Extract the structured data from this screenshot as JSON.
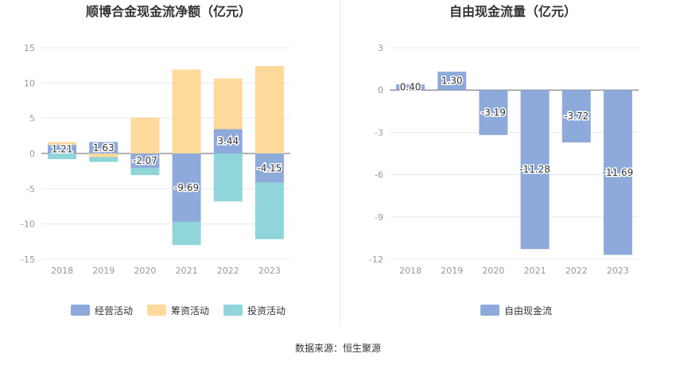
{
  "source_label": "数据来源：恒生聚源",
  "chart_data": [
    {
      "type": "bar",
      "stacked": true,
      "title": "顺博合金现金流净额（亿元）",
      "categories": [
        "2018",
        "2019",
        "2020",
        "2021",
        "2022",
        "2023"
      ],
      "ylim": [
        -15,
        15
      ],
      "yticks": [
        15,
        10,
        5,
        0,
        -5,
        -10,
        -15
      ],
      "grid": true,
      "legend_position": "bottom",
      "series": [
        {
          "name": "经营活动",
          "color": "#8eaadb",
          "values": [
            1.21,
            1.63,
            -2.07,
            -9.69,
            3.44,
            -4.15
          ],
          "labels": [
            "1.21",
            "1.63",
            "-2.07",
            "-9.69",
            "3.44",
            "-4.15"
          ]
        },
        {
          "name": "筹资活动",
          "color": "#fdd99b",
          "values": [
            0.4,
            -0.5,
            5.1,
            11.9,
            7.2,
            12.4
          ]
        },
        {
          "name": "投资活动",
          "color": "#8fd5d9",
          "values": [
            -0.8,
            -0.7,
            -1.0,
            -3.3,
            -6.8,
            -8.0
          ]
        }
      ]
    },
    {
      "type": "bar",
      "title": "自由现金流量（亿元）",
      "categories": [
        "2018",
        "2019",
        "2020",
        "2021",
        "2022",
        "2023"
      ],
      "ylim": [
        -12,
        3
      ],
      "yticks": [
        3,
        0,
        -3,
        -6,
        -9,
        -12
      ],
      "grid": true,
      "legend_position": "bottom",
      "series": [
        {
          "name": "自由现金流",
          "color": "#8eaadb",
          "values": [
            0.4,
            1.3,
            -3.19,
            -11.28,
            -3.72,
            -11.69
          ],
          "labels": [
            "0.40",
            "1.30",
            "-3.19",
            "-11.28",
            "-3.72",
            "-11.69"
          ]
        }
      ]
    }
  ]
}
